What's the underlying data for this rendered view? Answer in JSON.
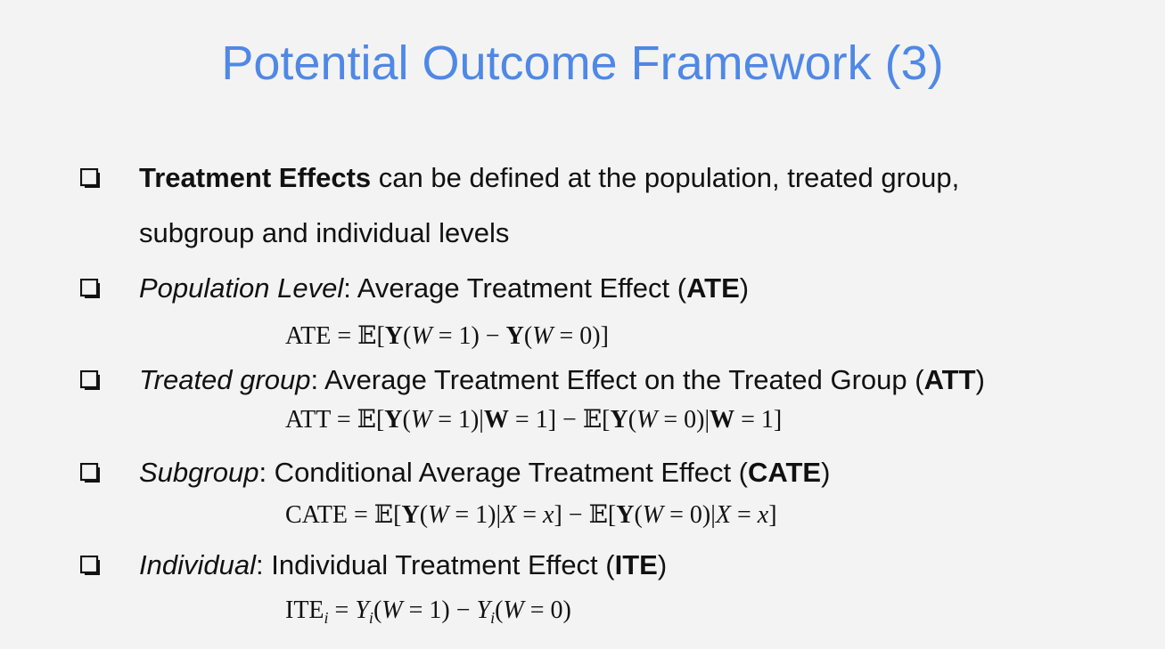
{
  "slide": {
    "title": "Potential Outcome Framework (3)"
  },
  "bullets": [
    {
      "lead_bold": "Treatment Effects",
      "text_line1": " can be defined at the population, treated group,",
      "text_line2": "subgroup and individual levels"
    },
    {
      "level_italic": "Population Level",
      "desc": ": Average Treatment Effect (",
      "abbr": "ATE",
      "close": ")",
      "formula": {
        "lhs": "ATE",
        "rhs": "= 𝔼[Y(W = 1) − Y(W = 0)]"
      }
    },
    {
      "level_italic": "Treated group",
      "desc": ": Average Treatment Effect on the Treated Group (",
      "abbr": "ATT",
      "close": ")",
      "formula": {
        "lhs": "ATT",
        "rhs": "= 𝔼[Y(W = 1)|W = 1] − 𝔼[Y(W = 0)|W = 1]"
      }
    },
    {
      "level_italic": "Subgroup",
      "desc": ": Conditional Average Treatment Effect (",
      "abbr": "CATE",
      "close": ")",
      "formula": {
        "lhs": "CATE",
        "rhs": "= 𝔼[Y(W = 1)|X = x] − 𝔼[Y(W = 0)|X = x]"
      }
    },
    {
      "level_italic": "Individual",
      "desc": ": Individual Treatment Effect (",
      "abbr": "ITE",
      "close": ")",
      "formula": {
        "lhs": "ITE",
        "sub": "i",
        "rhs": "= Y_i(W = 1) − Y_i(W = 0)"
      }
    }
  ],
  "icons": {
    "bullet": "checkbox-shadow-icon"
  },
  "colors": {
    "title": "#4f88e6",
    "background": "#f3f3f3",
    "text": "#111111"
  }
}
